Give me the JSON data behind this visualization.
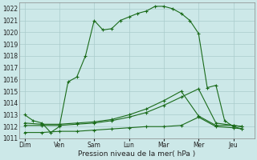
{
  "xlabel": "Pression niveau de la mer( hPa )",
  "bg_color": "#cce8e8",
  "grid_color": "#aacccc",
  "line_color": "#1a6b1a",
  "ylim": [
    1011,
    1022.5
  ],
  "yticks": [
    1011,
    1012,
    1013,
    1014,
    1015,
    1016,
    1017,
    1018,
    1019,
    1020,
    1021,
    1022
  ],
  "day_positions": [
    0,
    1,
    2,
    3,
    4,
    5,
    6
  ],
  "day_labels": [
    "Dim",
    "Ven",
    "Sam",
    "Lun",
    "Mar",
    "Mer",
    "Jeu"
  ],
  "xlim": [
    -0.15,
    6.6
  ],
  "series1_x": [
    0,
    0.25,
    0.5,
    0.75,
    1.0,
    1.25,
    1.5,
    1.75,
    2.0,
    2.25,
    2.5,
    2.75,
    3.0,
    3.25,
    3.5,
    3.75,
    4.0,
    4.25,
    4.5,
    4.75,
    5.0,
    5.25,
    5.5,
    5.75,
    6.0,
    6.25
  ],
  "series1_y": [
    1013.0,
    1012.5,
    1012.3,
    1011.5,
    1012.0,
    1015.8,
    1016.2,
    1018.0,
    1021.0,
    1020.2,
    1020.3,
    1021.0,
    1021.3,
    1021.6,
    1021.8,
    1022.2,
    1022.2,
    1022.0,
    1021.6,
    1021.0,
    1019.9,
    1015.3,
    1015.5,
    1012.5,
    1012.0,
    1011.8
  ],
  "series2_x": [
    0,
    0.5,
    1.0,
    1.5,
    2.0,
    2.5,
    3.0,
    3.5,
    4.0,
    4.5,
    5.0,
    5.5,
    6.0,
    6.25
  ],
  "series2_y": [
    1012.1,
    1012.1,
    1012.1,
    1012.2,
    1012.3,
    1012.5,
    1012.8,
    1013.2,
    1013.8,
    1014.5,
    1015.2,
    1012.3,
    1012.1,
    1012.0
  ],
  "series3_x": [
    0,
    0.5,
    1.0,
    1.5,
    2.0,
    2.5,
    3.0,
    3.5,
    4.0,
    4.5,
    5.0,
    5.5,
    6.0,
    6.25
  ],
  "series3_y": [
    1011.5,
    1011.5,
    1011.6,
    1011.6,
    1011.7,
    1011.8,
    1011.9,
    1012.0,
    1012.0,
    1012.1,
    1012.8,
    1012.0,
    1011.9,
    1011.8
  ],
  "series4_x": [
    0,
    0.5,
    1.0,
    1.5,
    2.0,
    2.5,
    3.0,
    3.5,
    4.0,
    4.5,
    5.0,
    5.5,
    6.0,
    6.25
  ],
  "series4_y": [
    1012.3,
    1012.2,
    1012.2,
    1012.3,
    1012.4,
    1012.6,
    1013.0,
    1013.5,
    1014.2,
    1015.0,
    1012.9,
    1012.1,
    1012.1,
    1012.0
  ]
}
